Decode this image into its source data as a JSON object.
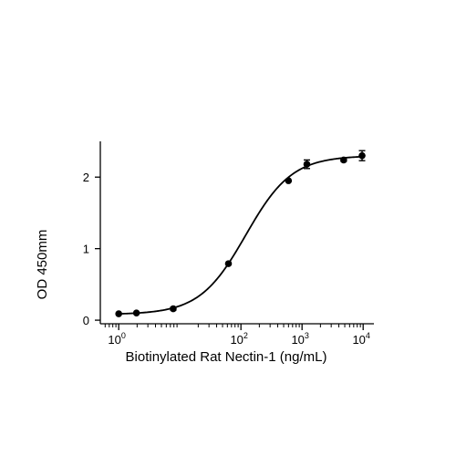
{
  "chart_data": {
    "type": "scatter",
    "xscale": "log",
    "xlim": [
      0.5,
      15000
    ],
    "ylim": [
      -0.05,
      2.5
    ],
    "xlabel": "Biotinylated Rat Nectin-1 (ng/mL)",
    "ylabel": "OD 450mm",
    "x_ticks": [
      {
        "value": 1,
        "base": "10",
        "exp": "0"
      },
      {
        "value": 100,
        "base": "10",
        "exp": "2"
      },
      {
        "value": 1000,
        "base": "10",
        "exp": "3"
      },
      {
        "value": 10000,
        "base": "10",
        "exp": "4"
      }
    ],
    "x_minor_decades": [
      0,
      1,
      2,
      3
    ],
    "y_ticks": [
      {
        "value": 0,
        "label": "0"
      },
      {
        "value": 1,
        "label": "1"
      },
      {
        "value": 2,
        "label": "2"
      }
    ],
    "points": [
      {
        "x": 1.0,
        "y": 0.09,
        "err": 0.0
      },
      {
        "x": 1.95,
        "y": 0.1,
        "err": 0.0
      },
      {
        "x": 7.8,
        "y": 0.16,
        "err": 0.02
      },
      {
        "x": 62.5,
        "y": 0.79,
        "err": 0.0
      },
      {
        "x": 600,
        "y": 1.95,
        "err": 0.0
      },
      {
        "x": 1200,
        "y": 2.18,
        "err": 0.06
      },
      {
        "x": 4800,
        "y": 2.24,
        "err": 0.02
      },
      {
        "x": 9600,
        "y": 2.3,
        "err": 0.07
      }
    ],
    "fit": {
      "model": "4PL",
      "bottom": 0.08,
      "top": 2.3,
      "ec50": 120,
      "hill": 1.15
    },
    "colors": {
      "marker": "#000000",
      "line": "#000000",
      "axis": "#000000"
    },
    "grid": false,
    "legend": "none"
  }
}
